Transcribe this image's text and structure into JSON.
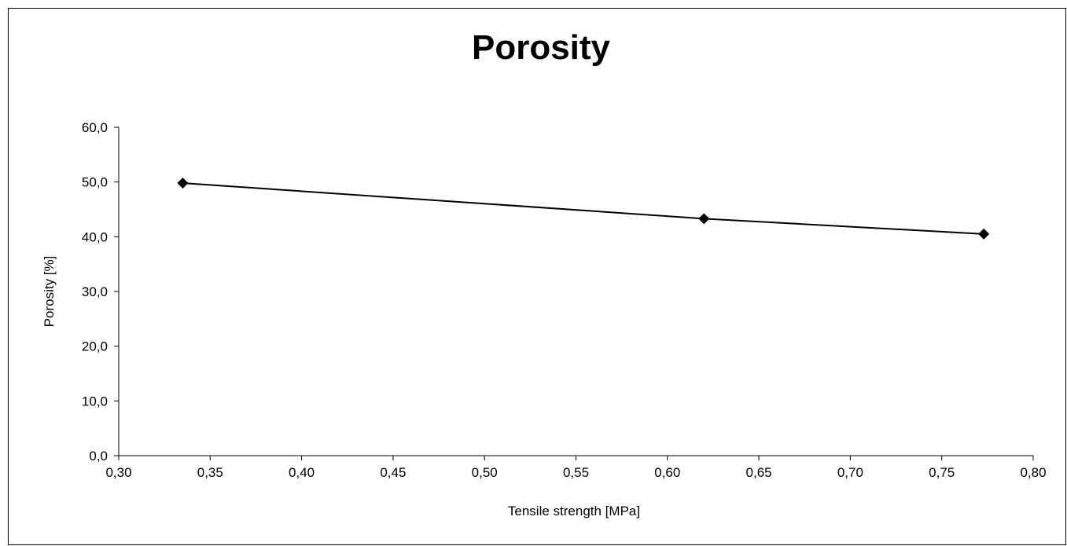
{
  "chart_data": {
    "type": "line",
    "title": "Porosity",
    "xlabel": "Tensile strength [MPa]",
    "ylabel": "Porosity [%]",
    "xlim": [
      0.3,
      0.8
    ],
    "ylim": [
      0,
      60
    ],
    "x_ticks": [
      "0,30",
      "0,35",
      "0,40",
      "0,45",
      "0,50",
      "0,55",
      "0,60",
      "0,65",
      "0,70",
      "0,75",
      "0,80"
    ],
    "y_ticks": [
      "0,0",
      "10,0",
      "20,0",
      "30,0",
      "40,0",
      "50,0",
      "60,0"
    ],
    "grid": false,
    "legend": "none",
    "series": [
      {
        "x": [
          0.335,
          0.62,
          0.773
        ],
        "y": [
          49.8,
          43.3,
          40.5
        ],
        "color": "#000000",
        "marker": "diamond"
      }
    ]
  }
}
